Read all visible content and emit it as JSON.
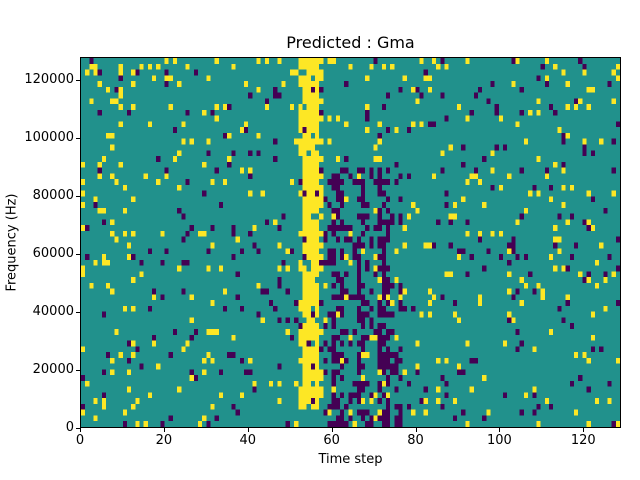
{
  "figure": {
    "background": "#ffffff"
  },
  "chart_data": {
    "type": "heatmap",
    "title": "Predicted : Gma",
    "xlabel": "Time step",
    "ylabel": "Frequency (Hz)",
    "xlim": [
      0,
      129
    ],
    "ylim": [
      0,
      128000
    ],
    "x_ticks": [
      0,
      20,
      40,
      60,
      80,
      100,
      120
    ],
    "y_ticks": [
      0,
      20000,
      40000,
      60000,
      80000,
      100000,
      120000
    ],
    "grid": {
      "cols": 129,
      "rows": 64,
      "hz_per_row": 2000
    },
    "colormap": {
      "low": "#440154",
      "mid": "#21918c",
      "high": "#fde725"
    },
    "legend": "none",
    "features": {
      "yellow_band": {
        "col_start": 52,
        "col_end": 57,
        "core_col_start": 53,
        "core_col_end": 56,
        "min_row": 3,
        "core_density": 0.9,
        "edge_density": 0.45
      },
      "purple_zone": {
        "col_start": 58,
        "col_end": 76,
        "max_row": 44,
        "extra_density": 0.18
      },
      "purple_streak_cols": [
        60,
        61,
        62,
        66,
        67,
        71,
        72,
        73
      ],
      "streak_extra_density": 0.35,
      "left_cluster": {
        "max_col": 12,
        "extra_yellow": 0.04
      },
      "top_edge": {
        "rows": 2,
        "extra_yellow": 0.08
      }
    },
    "noise": {
      "seed": 42,
      "base_yellow": 0.045,
      "base_purple": 0.035
    }
  }
}
